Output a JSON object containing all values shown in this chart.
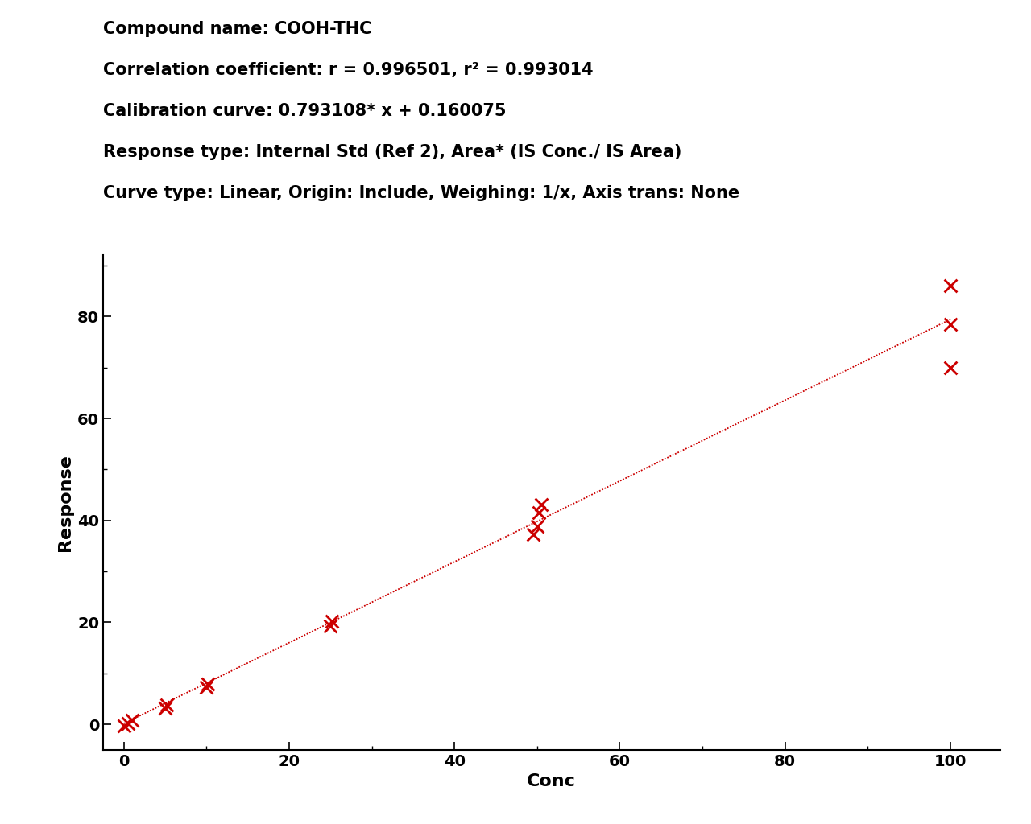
{
  "compound_name": "COOH-THC",
  "slope": 0.793108,
  "intercept": 0.160075,
  "line1": "Compound name: COOH-THC",
  "line2": "Correlation coefficient: r = 0.996501, r² = 0.993014",
  "line3": "Calibration curve: 0.793108* x + 0.160075",
  "line4": "Response type: Internal Std (Ref 2), Area* (IS Conc./ IS Area)",
  "line5": "Curve type: Linear, Origin: Include, Weighing: 1/x, Axis trans: None",
  "data_points_x": [
    0.0,
    0.5,
    1.0,
    5.0,
    5.2,
    10.0,
    10.2,
    25.0,
    25.2,
    49.5,
    50.0,
    50.2,
    50.5,
    100.0,
    100.0,
    100.0
  ],
  "data_points_y": [
    -0.3,
    0.15,
    0.8,
    3.2,
    3.85,
    7.3,
    7.85,
    19.3,
    20.2,
    37.3,
    38.8,
    41.5,
    43.1,
    70.0,
    78.5,
    86.0
  ],
  "xlabel": "Conc",
  "ylabel": "Response",
  "xlim": [
    -2.5,
    106
  ],
  "ylim": [
    -5,
    92
  ],
  "xticks": [
    0,
    20,
    40,
    60,
    80,
    100
  ],
  "yticks": [
    0,
    20,
    40,
    60,
    80
  ],
  "color": "#cc0000",
  "line_color": "#cc0000",
  "background_color": "#ffffff",
  "marker_size": 130,
  "marker_linewidth": 2.0,
  "line_width": 1.3,
  "annotation_fontsize": 15,
  "axis_label_fontsize": 16,
  "tick_fontsize": 14,
  "font_weight": "bold"
}
